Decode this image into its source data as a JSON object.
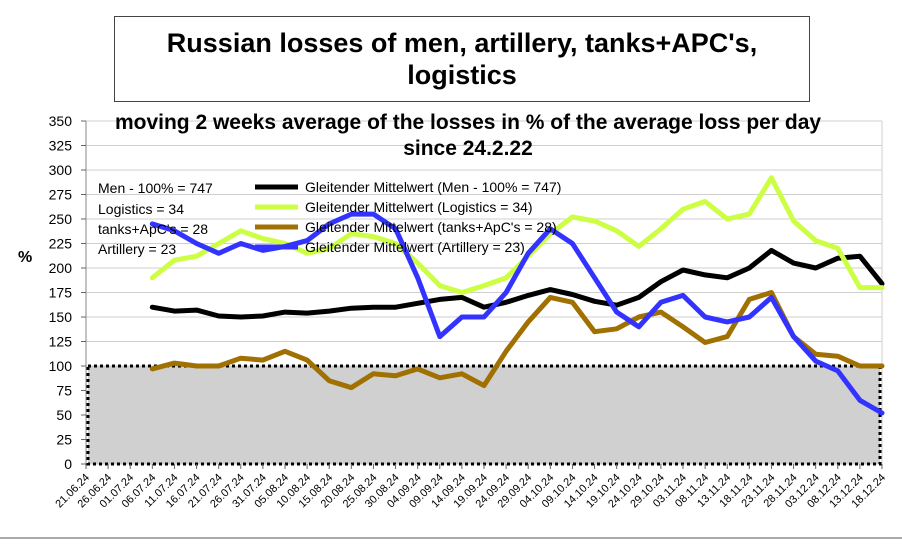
{
  "chart_data": {
    "type": "line",
    "title": "Russian losses of men, artillery, tanks+APC's, logistics",
    "subtitle": "moving 2 weeks average of the  losses in %  of the average loss per day since 24.2.22",
    "ylabel": "%",
    "ylim": [
      0,
      350
    ],
    "yticks": [
      0,
      25,
      50,
      75,
      100,
      125,
      150,
      175,
      200,
      225,
      250,
      275,
      300,
      325,
      350
    ],
    "grid": true,
    "legend_position": "top-left",
    "x_start": "21.06.24",
    "x_end": "18.12.24",
    "x_tick_labels": [
      "21.06.24",
      "26.06.24",
      "01.07.24",
      "06.07.24",
      "11.07.24",
      "16.07.24",
      "21.07.24",
      "26.07.24",
      "31.07.24",
      "05.08.24",
      "10.08.24",
      "15.08.24",
      "20.08.24",
      "25.08.24",
      "30.08.24",
      "04.09.24",
      "09.09.24",
      "14.09.24",
      "19.09.24",
      "24.09.24",
      "29.09.24",
      "04.10.24",
      "09.10.24",
      "14.10.24",
      "19.10.24",
      "24.10.24",
      "29.10.24",
      "03.11.24",
      "08.11.24",
      "13.11.24",
      "18.11.24",
      "23.11.24",
      "28.11.24",
      "03.12.24",
      "08.12.24",
      "13.12.24",
      "18.12.24"
    ],
    "reference_band": {
      "from": 0,
      "to": 100,
      "fill": "#d0d0d0",
      "border": "#000000"
    },
    "legend_notes": [
      "Men - 100% = 747",
      "Logistics = 34",
      "tanks+ApC's = 28",
      "Artillery  = 23"
    ],
    "series": [
      {
        "name": "Gleitender Mittelwert (Men - 100% = 747)",
        "color": "#000000",
        "points": [
          [
            "06.07.24",
            160
          ],
          [
            "11.07.24",
            156
          ],
          [
            "16.07.24",
            157
          ],
          [
            "21.07.24",
            151
          ],
          [
            "26.07.24",
            150
          ],
          [
            "31.07.24",
            151
          ],
          [
            "05.08.24",
            155
          ],
          [
            "10.08.24",
            154
          ],
          [
            "15.08.24",
            156
          ],
          [
            "20.08.24",
            159
          ],
          [
            "25.08.24",
            160
          ],
          [
            "30.08.24",
            160
          ],
          [
            "04.09.24",
            164
          ],
          [
            "09.09.24",
            168
          ],
          [
            "14.09.24",
            170
          ],
          [
            "19.09.24",
            160
          ],
          [
            "24.09.24",
            165
          ],
          [
            "29.09.24",
            172
          ],
          [
            "04.10.24",
            178
          ],
          [
            "09.10.24",
            173
          ],
          [
            "14.10.24",
            166
          ],
          [
            "19.10.24",
            162
          ],
          [
            "24.10.24",
            170
          ],
          [
            "29.10.24",
            186
          ],
          [
            "03.11.24",
            198
          ],
          [
            "08.11.24",
            193
          ],
          [
            "13.11.24",
            190
          ],
          [
            "18.11.24",
            200
          ],
          [
            "23.11.24",
            218
          ],
          [
            "28.11.24",
            205
          ],
          [
            "03.12.24",
            200
          ],
          [
            "08.12.24",
            210
          ],
          [
            "13.12.24",
            212
          ],
          [
            "18.12.24",
            184
          ]
        ]
      },
      {
        "name": "Gleitender Mittelwert (Logistics = 34)",
        "color": "#ccff44",
        "points": [
          [
            "06.07.24",
            190
          ],
          [
            "11.07.24",
            208
          ],
          [
            "16.07.24",
            212
          ],
          [
            "21.07.24",
            225
          ],
          [
            "26.07.24",
            238
          ],
          [
            "31.07.24",
            230
          ],
          [
            "05.08.24",
            225
          ],
          [
            "10.08.24",
            215
          ],
          [
            "15.08.24",
            220
          ],
          [
            "20.08.24",
            235
          ],
          [
            "25.08.24",
            232
          ],
          [
            "30.08.24",
            225
          ],
          [
            "04.09.24",
            205
          ],
          [
            "09.09.24",
            182
          ],
          [
            "14.09.24",
            175
          ],
          [
            "19.09.24",
            182
          ],
          [
            "24.09.24",
            190
          ],
          [
            "29.09.24",
            212
          ],
          [
            "04.10.24",
            235
          ],
          [
            "09.10.24",
            252
          ],
          [
            "14.10.24",
            248
          ],
          [
            "19.10.24",
            238
          ],
          [
            "24.10.24",
            222
          ],
          [
            "29.10.24",
            240
          ],
          [
            "03.11.24",
            260
          ],
          [
            "08.11.24",
            268
          ],
          [
            "13.11.24",
            250
          ],
          [
            "18.11.24",
            255
          ],
          [
            "23.11.24",
            292
          ],
          [
            "28.11.24",
            248
          ],
          [
            "03.12.24",
            228
          ],
          [
            "08.12.24",
            220
          ],
          [
            "13.12.24",
            180
          ],
          [
            "18.12.24",
            180
          ]
        ]
      },
      {
        "name": "Gleitender Mittelwert (tanks+ApC's = 28)",
        "color": "#a07000",
        "points": [
          [
            "06.07.24",
            97
          ],
          [
            "11.07.24",
            103
          ],
          [
            "16.07.24",
            100
          ],
          [
            "21.07.24",
            100
          ],
          [
            "26.07.24",
            108
          ],
          [
            "31.07.24",
            106
          ],
          [
            "05.08.24",
            115
          ],
          [
            "10.08.24",
            106
          ],
          [
            "15.08.24",
            85
          ],
          [
            "20.08.24",
            78
          ],
          [
            "25.08.24",
            92
          ],
          [
            "30.08.24",
            90
          ],
          [
            "04.09.24",
            97
          ],
          [
            "09.09.24",
            88
          ],
          [
            "14.09.24",
            92
          ],
          [
            "19.09.24",
            80
          ],
          [
            "24.09.24",
            115
          ],
          [
            "29.09.24",
            145
          ],
          [
            "04.10.24",
            170
          ],
          [
            "09.10.24",
            165
          ],
          [
            "14.10.24",
            135
          ],
          [
            "19.10.24",
            138
          ],
          [
            "24.10.24",
            150
          ],
          [
            "29.10.24",
            155
          ],
          [
            "03.11.24",
            140
          ],
          [
            "08.11.24",
            124
          ],
          [
            "13.11.24",
            130
          ],
          [
            "18.11.24",
            168
          ],
          [
            "23.11.24",
            175
          ],
          [
            "28.11.24",
            130
          ],
          [
            "03.12.24",
            112
          ],
          [
            "08.12.24",
            110
          ],
          [
            "13.12.24",
            100
          ],
          [
            "18.12.24",
            100
          ]
        ]
      },
      {
        "name": "Gleitender Mittelwert (Artillery  = 23)",
        "color": "#3333ff",
        "points": [
          [
            "06.07.24",
            245
          ],
          [
            "11.07.24",
            238
          ],
          [
            "16.07.24",
            225
          ],
          [
            "21.07.24",
            215
          ],
          [
            "26.07.24",
            225
          ],
          [
            "31.07.24",
            218
          ],
          [
            "05.08.24",
            222
          ],
          [
            "10.08.24",
            228
          ],
          [
            "15.08.24",
            245
          ],
          [
            "20.08.24",
            255
          ],
          [
            "25.08.24",
            255
          ],
          [
            "30.08.24",
            240
          ],
          [
            "04.09.24",
            190
          ],
          [
            "09.09.24",
            130
          ],
          [
            "14.09.24",
            150
          ],
          [
            "19.09.24",
            150
          ],
          [
            "24.09.24",
            175
          ],
          [
            "29.09.24",
            215
          ],
          [
            "04.10.24",
            240
          ],
          [
            "09.10.24",
            225
          ],
          [
            "14.10.24",
            190
          ],
          [
            "19.10.24",
            155
          ],
          [
            "24.10.24",
            140
          ],
          [
            "29.10.24",
            165
          ],
          [
            "03.11.24",
            172
          ],
          [
            "08.11.24",
            150
          ],
          [
            "13.11.24",
            145
          ],
          [
            "18.11.24",
            150
          ],
          [
            "23.11.24",
            170
          ],
          [
            "28.11.24",
            130
          ],
          [
            "03.12.24",
            105
          ],
          [
            "08.12.24",
            95
          ],
          [
            "13.12.24",
            65
          ],
          [
            "18.12.24",
            52
          ]
        ]
      }
    ]
  }
}
